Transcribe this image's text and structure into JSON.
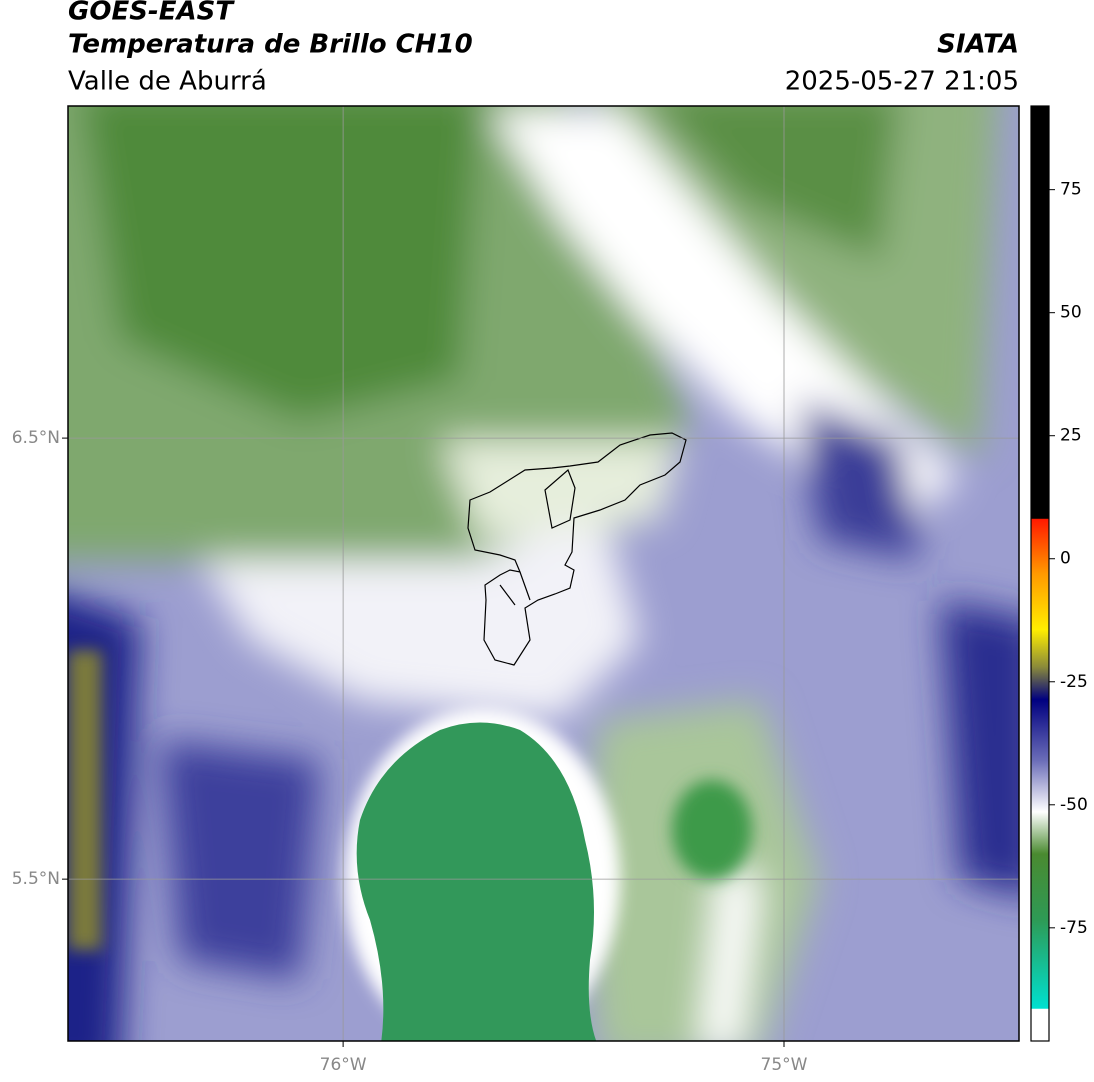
{
  "header": {
    "satellite": "GOES-EAST",
    "product": "Temperatura de Brillo CH10",
    "region": "Valle de Aburrá",
    "source": "SIATA",
    "datetime": "2025-05-27 21:05"
  },
  "map": {
    "xlim": [
      -76.624,
      -74.467
    ],
    "ylim": [
      5.133,
      7.253
    ],
    "xticks": [
      {
        "value": -76,
        "label": "76°W"
      },
      {
        "value": -75,
        "label": "75°W"
      }
    ],
    "yticks": [
      {
        "value": 6.5,
        "label": "6.5°N"
      },
      {
        "value": 5.5,
        "label": "5.5°N"
      }
    ],
    "grid": true
  },
  "colorbar": {
    "lim": [
      -98,
      92
    ],
    "ticks": [
      75,
      50,
      25,
      0,
      -25,
      -50,
      -75
    ]
  }
}
